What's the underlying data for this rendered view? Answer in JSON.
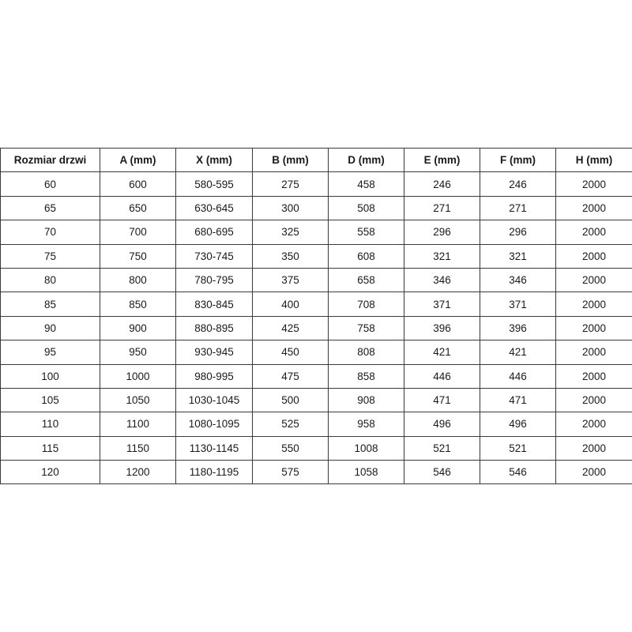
{
  "table": {
    "headers": [
      "Rozmiar drzwi",
      "A (mm)",
      "X (mm)",
      "B (mm)",
      "D (mm)",
      "E (mm)",
      "F (mm)",
      "H (mm)"
    ],
    "rows": [
      [
        "60",
        "600",
        "580-595",
        "275",
        "458",
        "246",
        "246",
        "2000"
      ],
      [
        "65",
        "650",
        "630-645",
        "300",
        "508",
        "271",
        "271",
        "2000"
      ],
      [
        "70",
        "700",
        "680-695",
        "325",
        "558",
        "296",
        "296",
        "2000"
      ],
      [
        "75",
        "750",
        "730-745",
        "350",
        "608",
        "321",
        "321",
        "2000"
      ],
      [
        "80",
        "800",
        "780-795",
        "375",
        "658",
        "346",
        "346",
        "2000"
      ],
      [
        "85",
        "850",
        "830-845",
        "400",
        "708",
        "371",
        "371",
        "2000"
      ],
      [
        "90",
        "900",
        "880-895",
        "425",
        "758",
        "396",
        "396",
        "2000"
      ],
      [
        "95",
        "950",
        "930-945",
        "450",
        "808",
        "421",
        "421",
        "2000"
      ],
      [
        "100",
        "1000",
        "980-995",
        "475",
        "858",
        "446",
        "446",
        "2000"
      ],
      [
        "105",
        "1050",
        "1030-1045",
        "500",
        "908",
        "471",
        "471",
        "2000"
      ],
      [
        "110",
        "1100",
        "1080-1095",
        "525",
        "958",
        "496",
        "496",
        "2000"
      ],
      [
        "115",
        "1150",
        "1130-1145",
        "550",
        "1008",
        "521",
        "521",
        "2000"
      ],
      [
        "120",
        "1200",
        "1180-1195",
        "575",
        "1058",
        "546",
        "546",
        "2000"
      ]
    ]
  }
}
